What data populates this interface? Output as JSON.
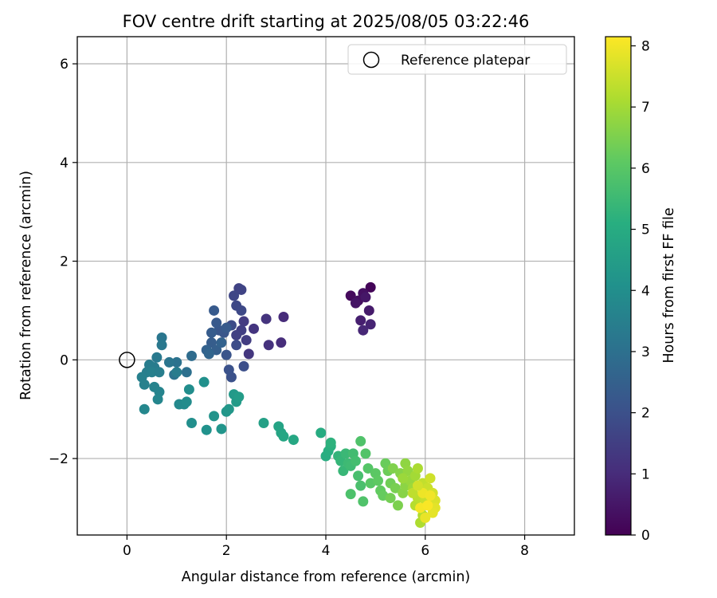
{
  "chart_data": {
    "type": "scatter",
    "title": "FOV centre drift starting at 2025/08/05 03:22:46",
    "xlabel": "Angular distance from reference (arcmin)",
    "ylabel": "Rotation from reference (arcmin)",
    "xlim": [
      -1.0,
      9.0
    ],
    "ylim": [
      -3.55,
      6.55
    ],
    "xticks": [
      0,
      2,
      4,
      6,
      8
    ],
    "yticks": [
      -2,
      0,
      2,
      4,
      6
    ],
    "grid": true,
    "legend": {
      "position": "top-right",
      "entries": [
        {
          "label": "Reference platepar",
          "marker": "open-circle"
        }
      ]
    },
    "reference_point": {
      "x": 0,
      "y": 0
    },
    "colorbar": {
      "label": "Hours from first FF file",
      "range": [
        0,
        8.15
      ],
      "ticks": [
        0,
        1,
        2,
        3,
        4,
        5,
        6,
        7,
        8
      ],
      "colormap": "viridis"
    },
    "points": [
      {
        "x": 4.9,
        "y": 1.47,
        "h": 0.1
      },
      {
        "x": 4.5,
        "y": 1.3,
        "h": 0.2
      },
      {
        "x": 4.65,
        "y": 1.2,
        "h": 0.3
      },
      {
        "x": 4.75,
        "y": 1.35,
        "h": 0.35
      },
      {
        "x": 4.6,
        "y": 1.15,
        "h": 0.45
      },
      {
        "x": 4.8,
        "y": 1.27,
        "h": 0.5
      },
      {
        "x": 4.87,
        "y": 1.0,
        "h": 0.6
      },
      {
        "x": 4.7,
        "y": 0.8,
        "h": 0.7
      },
      {
        "x": 4.9,
        "y": 0.72,
        "h": 0.8
      },
      {
        "x": 4.75,
        "y": 0.6,
        "h": 0.9
      },
      {
        "x": 3.15,
        "y": 0.87,
        "h": 1.0
      },
      {
        "x": 3.1,
        "y": 0.35,
        "h": 1.05
      },
      {
        "x": 2.85,
        "y": 0.3,
        "h": 1.15
      },
      {
        "x": 2.8,
        "y": 0.83,
        "h": 1.2
      },
      {
        "x": 2.55,
        "y": 0.63,
        "h": 1.25
      },
      {
        "x": 2.45,
        "y": 0.12,
        "h": 1.3
      },
      {
        "x": 2.35,
        "y": 0.78,
        "h": 1.4
      },
      {
        "x": 2.4,
        "y": 0.4,
        "h": 1.45
      },
      {
        "x": 2.3,
        "y": 0.6,
        "h": 1.5
      },
      {
        "x": 2.2,
        "y": 0.5,
        "h": 1.55
      },
      {
        "x": 2.25,
        "y": 1.45,
        "h": 1.6
      },
      {
        "x": 2.3,
        "y": 1.42,
        "h": 1.65
      },
      {
        "x": 2.15,
        "y": 1.3,
        "h": 1.7
      },
      {
        "x": 2.2,
        "y": 1.1,
        "h": 1.75
      },
      {
        "x": 2.3,
        "y": 1.0,
        "h": 1.8
      },
      {
        "x": 2.1,
        "y": 0.7,
        "h": 1.85
      },
      {
        "x": 2.2,
        "y": 0.3,
        "h": 1.9
      },
      {
        "x": 2.35,
        "y": -0.13,
        "h": 1.95
      },
      {
        "x": 2.1,
        "y": -0.35,
        "h": 2.0
      },
      {
        "x": 2.05,
        "y": -0.2,
        "h": 2.05
      },
      {
        "x": 2.0,
        "y": 0.1,
        "h": 2.1
      },
      {
        "x": 1.95,
        "y": 0.55,
        "h": 2.15
      },
      {
        "x": 1.85,
        "y": 0.6,
        "h": 2.2
      },
      {
        "x": 1.8,
        "y": 0.75,
        "h": 2.25
      },
      {
        "x": 1.75,
        "y": 1.0,
        "h": 2.3
      },
      {
        "x": 1.7,
        "y": 0.55,
        "h": 2.35
      },
      {
        "x": 1.7,
        "y": 0.35,
        "h": 2.4
      },
      {
        "x": 1.8,
        "y": 0.2,
        "h": 2.45
      },
      {
        "x": 1.6,
        "y": 0.2,
        "h": 2.55
      },
      {
        "x": 1.65,
        "y": 0.12,
        "h": 2.65
      },
      {
        "x": 1.9,
        "y": 0.35,
        "h": 2.55
      },
      {
        "x": 2.0,
        "y": 0.65,
        "h": 2.3
      },
      {
        "x": 1.3,
        "y": 0.08,
        "h": 2.85
      },
      {
        "x": 1.2,
        "y": -0.25,
        "h": 3.0
      },
      {
        "x": 1.0,
        "y": -0.05,
        "h": 3.05
      },
      {
        "x": 0.95,
        "y": -0.3,
        "h": 3.1
      },
      {
        "x": 0.85,
        "y": -0.05,
        "h": 3.15
      },
      {
        "x": 0.7,
        "y": 0.45,
        "h": 3.2
      },
      {
        "x": 0.7,
        "y": 0.3,
        "h": 3.25
      },
      {
        "x": 0.6,
        "y": 0.05,
        "h": 3.3
      },
      {
        "x": 0.55,
        "y": -0.15,
        "h": 3.35
      },
      {
        "x": 0.45,
        "y": -0.1,
        "h": 3.4
      },
      {
        "x": 0.4,
        "y": -0.25,
        "h": 3.45
      },
      {
        "x": 0.3,
        "y": -0.35,
        "h": 3.5
      },
      {
        "x": 0.35,
        "y": -0.5,
        "h": 3.55
      },
      {
        "x": 0.55,
        "y": -0.55,
        "h": 3.6
      },
      {
        "x": 0.65,
        "y": -0.65,
        "h": 3.65
      },
      {
        "x": 0.62,
        "y": -0.8,
        "h": 3.7
      },
      {
        "x": 0.35,
        "y": -1.0,
        "h": 3.75
      },
      {
        "x": 0.5,
        "y": -0.25,
        "h": 3.5
      },
      {
        "x": 0.65,
        "y": -0.25,
        "h": 3.45
      },
      {
        "x": 1.0,
        "y": -0.25,
        "h": 3.4
      },
      {
        "x": 1.05,
        "y": -0.9,
        "h": 3.8
      },
      {
        "x": 1.15,
        "y": -0.9,
        "h": 3.85
      },
      {
        "x": 1.2,
        "y": -0.85,
        "h": 3.9
      },
      {
        "x": 1.25,
        "y": -0.6,
        "h": 3.95
      },
      {
        "x": 1.3,
        "y": -1.28,
        "h": 4.0
      },
      {
        "x": 1.55,
        "y": -0.45,
        "h": 4.05
      },
      {
        "x": 1.6,
        "y": -1.42,
        "h": 4.1
      },
      {
        "x": 1.75,
        "y": -1.14,
        "h": 4.15
      },
      {
        "x": 1.9,
        "y": -1.4,
        "h": 4.2
      },
      {
        "x": 2.0,
        "y": -1.05,
        "h": 4.25
      },
      {
        "x": 2.05,
        "y": -1.0,
        "h": 4.3
      },
      {
        "x": 2.15,
        "y": -0.7,
        "h": 4.35
      },
      {
        "x": 2.2,
        "y": -0.85,
        "h": 4.4
      },
      {
        "x": 2.25,
        "y": -0.75,
        "h": 4.45
      },
      {
        "x": 2.75,
        "y": -1.28,
        "h": 4.6
      },
      {
        "x": 3.05,
        "y": -1.35,
        "h": 4.7
      },
      {
        "x": 3.1,
        "y": -1.48,
        "h": 4.75
      },
      {
        "x": 3.15,
        "y": -1.55,
        "h": 4.8
      },
      {
        "x": 3.35,
        "y": -1.62,
        "h": 4.85
      },
      {
        "x": 3.9,
        "y": -1.48,
        "h": 5.0
      },
      {
        "x": 4.0,
        "y": -1.95,
        "h": 5.05
      },
      {
        "x": 4.05,
        "y": -1.85,
        "h": 5.1
      },
      {
        "x": 4.1,
        "y": -1.75,
        "h": 5.15
      },
      {
        "x": 4.1,
        "y": -1.68,
        "h": 5.2
      },
      {
        "x": 4.25,
        "y": -1.95,
        "h": 5.3
      },
      {
        "x": 4.3,
        "y": -2.05,
        "h": 5.35
      },
      {
        "x": 4.35,
        "y": -2.25,
        "h": 5.4
      },
      {
        "x": 4.4,
        "y": -1.9,
        "h": 5.45
      },
      {
        "x": 4.45,
        "y": -2.1,
        "h": 5.5
      },
      {
        "x": 4.5,
        "y": -2.15,
        "h": 5.55
      },
      {
        "x": 4.55,
        "y": -1.9,
        "h": 5.6
      },
      {
        "x": 4.6,
        "y": -2.05,
        "h": 5.65
      },
      {
        "x": 4.65,
        "y": -2.35,
        "h": 5.7
      },
      {
        "x": 4.7,
        "y": -2.55,
        "h": 5.75
      },
      {
        "x": 4.5,
        "y": -2.72,
        "h": 5.8
      },
      {
        "x": 4.75,
        "y": -2.87,
        "h": 5.85
      },
      {
        "x": 4.7,
        "y": -1.65,
        "h": 5.85
      },
      {
        "x": 4.8,
        "y": -1.9,
        "h": 5.9
      },
      {
        "x": 4.85,
        "y": -2.2,
        "h": 5.95
      },
      {
        "x": 4.9,
        "y": -2.5,
        "h": 6.0
      },
      {
        "x": 5.0,
        "y": -2.3,
        "h": 6.05
      },
      {
        "x": 5.05,
        "y": -2.45,
        "h": 6.1
      },
      {
        "x": 5.1,
        "y": -2.65,
        "h": 6.15
      },
      {
        "x": 5.15,
        "y": -2.75,
        "h": 6.2
      },
      {
        "x": 5.2,
        "y": -2.1,
        "h": 6.25
      },
      {
        "x": 5.25,
        "y": -2.25,
        "h": 6.3
      },
      {
        "x": 5.3,
        "y": -2.5,
        "h": 6.35
      },
      {
        "x": 5.3,
        "y": -2.8,
        "h": 6.4
      },
      {
        "x": 5.4,
        "y": -2.6,
        "h": 6.45
      },
      {
        "x": 5.45,
        "y": -2.95,
        "h": 6.5
      },
      {
        "x": 5.35,
        "y": -2.2,
        "h": 6.55
      },
      {
        "x": 5.5,
        "y": -2.3,
        "h": 6.6
      },
      {
        "x": 5.55,
        "y": -2.7,
        "h": 6.65
      },
      {
        "x": 5.6,
        "y": -2.55,
        "h": 6.7
      },
      {
        "x": 5.6,
        "y": -2.1,
        "h": 6.75
      },
      {
        "x": 5.65,
        "y": -2.25,
        "h": 6.8
      },
      {
        "x": 5.7,
        "y": -2.45,
        "h": 6.85
      },
      {
        "x": 5.55,
        "y": -2.4,
        "h": 6.9
      },
      {
        "x": 5.75,
        "y": -2.6,
        "h": 6.95
      },
      {
        "x": 5.8,
        "y": -2.35,
        "h": 7.0
      },
      {
        "x": 5.85,
        "y": -2.2,
        "h": 7.1
      },
      {
        "x": 5.9,
        "y": -3.3,
        "h": 7.15
      },
      {
        "x": 5.95,
        "y": -3.15,
        "h": 7.2
      },
      {
        "x": 5.8,
        "y": -2.95,
        "h": 7.25
      },
      {
        "x": 5.85,
        "y": -2.8,
        "h": 7.3
      },
      {
        "x": 5.75,
        "y": -2.7,
        "h": 7.35
      },
      {
        "x": 5.95,
        "y": -2.5,
        "h": 7.4
      },
      {
        "x": 6.0,
        "y": -2.85,
        "h": 7.45
      },
      {
        "x": 6.05,
        "y": -2.6,
        "h": 7.5
      },
      {
        "x": 6.1,
        "y": -2.4,
        "h": 7.55
      },
      {
        "x": 6.15,
        "y": -2.7,
        "h": 7.6
      },
      {
        "x": 6.2,
        "y": -2.85,
        "h": 7.7
      },
      {
        "x": 6.2,
        "y": -3.0,
        "h": 7.8
      },
      {
        "x": 6.15,
        "y": -3.1,
        "h": 7.85
      },
      {
        "x": 6.0,
        "y": -3.2,
        "h": 7.9
      },
      {
        "x": 5.95,
        "y": -2.7,
        "h": 7.95
      },
      {
        "x": 6.1,
        "y": -2.75,
        "h": 8.0
      },
      {
        "x": 5.9,
        "y": -3.0,
        "h": 8.05
      },
      {
        "x": 6.05,
        "y": -2.95,
        "h": 8.1
      },
      {
        "x": 5.85,
        "y": -2.55,
        "h": 7.6
      }
    ]
  }
}
